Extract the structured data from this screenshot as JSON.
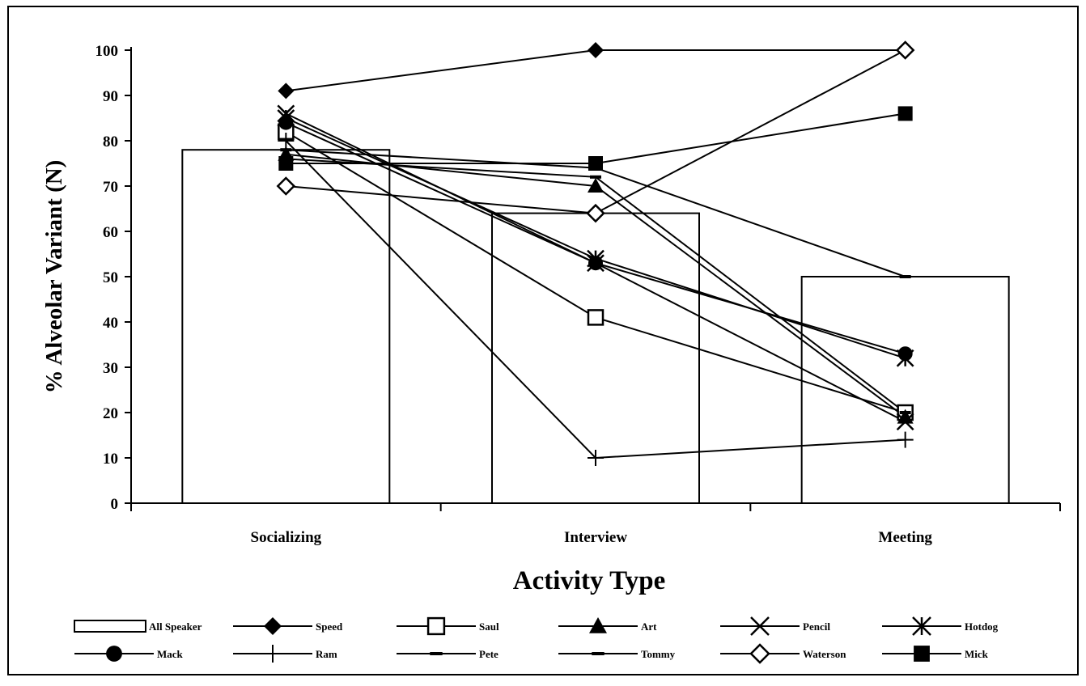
{
  "chart_data": {
    "type": "bar",
    "categories": [
      "Socializing",
      "Interview",
      "Meeting"
    ],
    "xlabel": "Activity Type",
    "ylabel": "% Alveolar Variant (N)",
    "ylim": [
      0,
      100
    ],
    "yticks": [
      0,
      10,
      20,
      30,
      40,
      50,
      60,
      70,
      80,
      90,
      100
    ],
    "grid": false,
    "legend_position": "bottom",
    "bar_series": {
      "name": "All Speaker",
      "values": [
        78,
        64,
        50
      ]
    },
    "line_series": [
      {
        "name": "Speed",
        "marker": "diamond-filled",
        "values": [
          91,
          100,
          100
        ]
      },
      {
        "name": "Saul",
        "marker": "square-open",
        "values": [
          82,
          41,
          20
        ]
      },
      {
        "name": "Art",
        "marker": "triangle-filled",
        "values": [
          77,
          70,
          19
        ]
      },
      {
        "name": "Pencil",
        "marker": "x",
        "values": [
          86,
          53,
          18
        ]
      },
      {
        "name": "Hotdog",
        "marker": "asterisk",
        "values": [
          85,
          54,
          32
        ]
      },
      {
        "name": "Mack",
        "marker": "circle-filled",
        "values": [
          84,
          53,
          33
        ]
      },
      {
        "name": "Ram",
        "marker": "plus",
        "values": [
          80,
          10,
          14
        ]
      },
      {
        "name": "Pete",
        "marker": "dash",
        "values": [
          76,
          72,
          20
        ]
      },
      {
        "name": "Tommy",
        "marker": "dash",
        "values": [
          78,
          74,
          50
        ]
      },
      {
        "name": "Waterson",
        "marker": "diamond-open",
        "values": [
          70,
          64,
          100
        ]
      },
      {
        "name": "Mick",
        "marker": "square-filled",
        "values": [
          75,
          75,
          86
        ]
      }
    ]
  }
}
